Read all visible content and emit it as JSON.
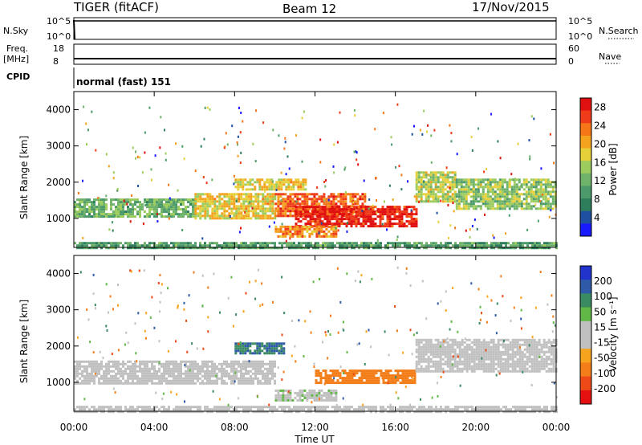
{
  "header": {
    "station": "TIGER (fitACF)",
    "beam": "Beam 12",
    "date": "17/Nov/2015"
  },
  "status_panels": {
    "nsky_label": "N.Sky",
    "nsearch_label": "N.Search",
    "nsky_ticks": [
      "10^5",
      "10^0"
    ],
    "nsearch_ticks": [
      "10^5",
      "10^0"
    ],
    "freq_label_1": "Freq.",
    "freq_label_2": "[MHz]",
    "freq_ticks": [
      "18",
      "8"
    ],
    "nave_label": "Nave",
    "nave_ticks": [
      "60",
      "0"
    ],
    "cpid_label": "CPID",
    "cpid_text": "normal (fast) 151"
  },
  "colors": {
    "power_scale": [
      "#1a1aff",
      "#1f4fa0",
      "#2e7d5b",
      "#4c9a6b",
      "#6fb26a",
      "#9ccc5e",
      "#e6d03a",
      "#f4a31f",
      "#f57616",
      "#ef3b1a",
      "#e01010"
    ],
    "velocity_scale": [
      "#2233cc",
      "#2f5aa8",
      "#3a8a62",
      "#62b846",
      "#c0c0c0",
      "#c0c0c0",
      "#f6a41d",
      "#f37d18",
      "#ee4a17",
      "#e51010"
    ]
  },
  "chart_data": [
    {
      "type": "heatmap",
      "panel": "power",
      "ylabel": "Slant Range [km]",
      "xlabel": "",
      "y_ticks": [
        "1000",
        "2000",
        "3000",
        "4000"
      ],
      "x_ticks": [
        "00:00",
        "04:00",
        "08:00",
        "12:00",
        "16:00",
        "20:00",
        "00:00"
      ],
      "ylim": [
        200,
        4500
      ],
      "xlim": [
        0,
        24
      ],
      "colorbar_label": "Power [dB]",
      "colorbar_ticks": [
        "4",
        "8",
        "12",
        "16",
        "20",
        "24",
        "28"
      ],
      "colorbar_range": [
        0,
        30
      ],
      "bands": [
        {
          "t0": 0.0,
          "t1": 6.0,
          "r0": 1050,
          "r1": 1550,
          "level": 12
        },
        {
          "t0": 6.0,
          "t1": 10.0,
          "r0": 1000,
          "r1": 1700,
          "level": 18
        },
        {
          "t0": 10.0,
          "t1": 14.5,
          "r0": 1050,
          "r1": 1700,
          "level": 24
        },
        {
          "t0": 11.0,
          "t1": 17.0,
          "r0": 800,
          "r1": 1350,
          "level": 28
        },
        {
          "t0": 10.0,
          "t1": 13.0,
          "r0": 500,
          "r1": 800,
          "level": 22
        },
        {
          "t0": 8.0,
          "t1": 11.5,
          "r0": 1800,
          "r1": 2100,
          "level": 18
        },
        {
          "t0": 17.0,
          "t1": 19.0,
          "r0": 1500,
          "r1": 2300,
          "level": 16
        },
        {
          "t0": 19.0,
          "t1": 24.0,
          "r0": 1300,
          "r1": 2100,
          "level": 14
        },
        {
          "t0": 0.0,
          "t1": 24.0,
          "r0": 200,
          "r1": 350,
          "level": 10
        }
      ]
    },
    {
      "type": "heatmap",
      "panel": "velocity",
      "ylabel": "Slant Range [km]",
      "xlabel": "Time UT",
      "y_ticks": [
        "1000",
        "2000",
        "3000",
        "4000"
      ],
      "x_ticks": [
        "00:00",
        "04:00",
        "08:00",
        "12:00",
        "16:00",
        "20:00",
        "00:00"
      ],
      "ylim": [
        200,
        4500
      ],
      "xlim": [
        0,
        24
      ],
      "colorbar_label": "Velocity [m s⁻¹]",
      "colorbar_ticks": [
        "200",
        "100",
        "50",
        "15",
        "-15",
        "-50",
        "-100",
        "-200"
      ],
      "colorbar_range": [
        -250,
        250
      ],
      "bands": [
        {
          "t0": 0.0,
          "t1": 10.0,
          "r0": 1000,
          "r1": 1600,
          "level": 0
        },
        {
          "t0": 12.0,
          "t1": 17.0,
          "r0": 1000,
          "r1": 1350,
          "level": -120
        },
        {
          "t0": 10.0,
          "t1": 13.0,
          "r0": 500,
          "r1": 800,
          "level": 40
        },
        {
          "t0": 17.0,
          "t1": 24.0,
          "r0": 1300,
          "r1": 2200,
          "level": 0
        },
        {
          "t0": 8.0,
          "t1": 10.5,
          "r0": 1800,
          "r1": 2100,
          "level": 150
        },
        {
          "t0": 0.0,
          "t1": 24.0,
          "r0": 200,
          "r1": 350,
          "level": 0
        }
      ]
    }
  ]
}
